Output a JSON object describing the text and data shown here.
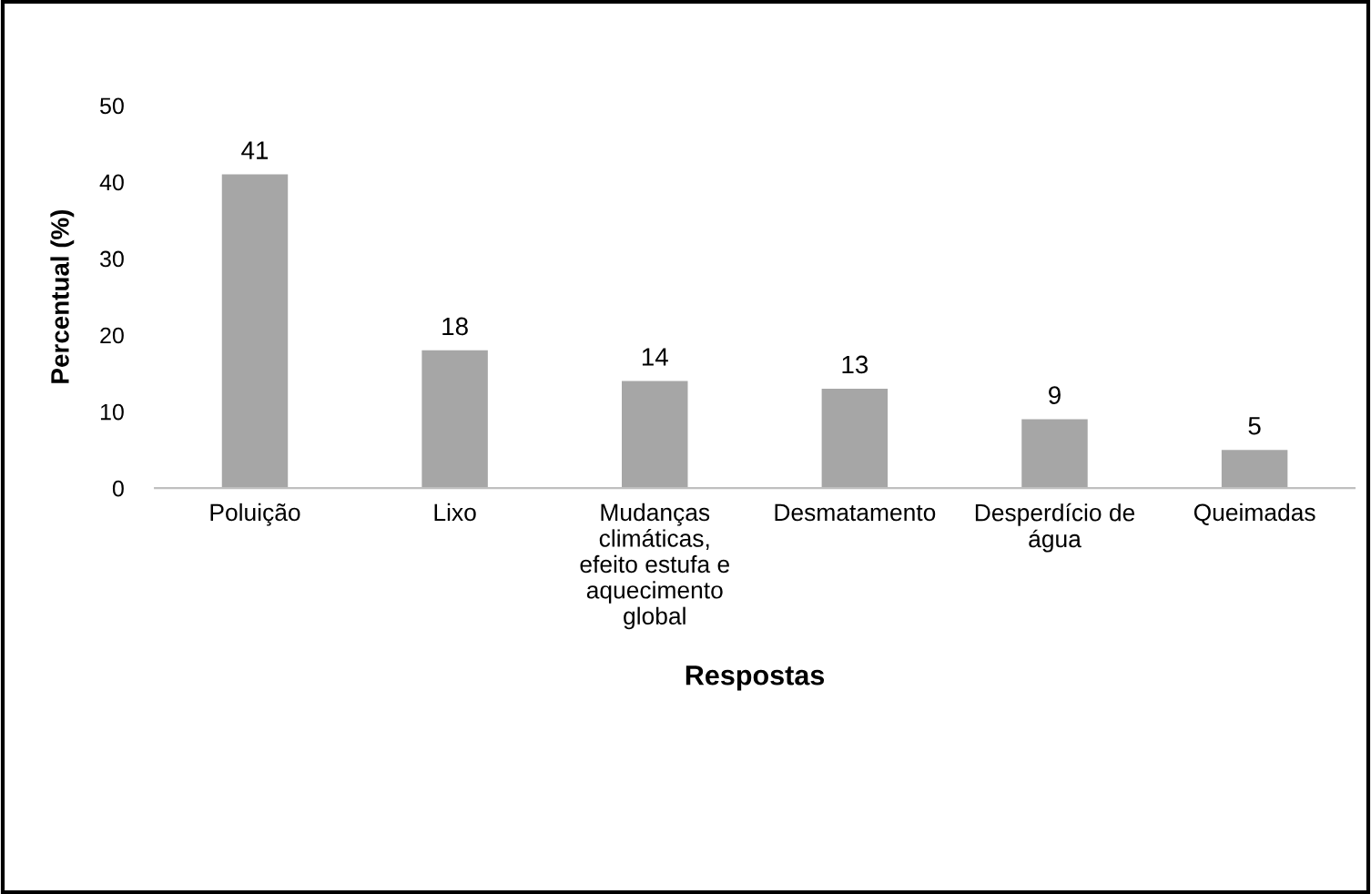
{
  "chart_data": {
    "type": "bar",
    "xlabel": "Respostas",
    "ylabel": "Percentual (%)",
    "categories": [
      "Poluição",
      "Lixo",
      "Mudanças climáticas, efeito estufa e aquecimento global",
      "Desmatamento",
      "Desperdício de água",
      "Queimadas"
    ],
    "values": [
      41,
      18,
      14,
      13,
      9,
      5
    ],
    "color": "#a6a6a6",
    "ylim": [
      0,
      50
    ],
    "yticks": [
      0,
      10,
      20,
      30,
      40,
      50
    ],
    "grid": false,
    "data_labels": true
  }
}
